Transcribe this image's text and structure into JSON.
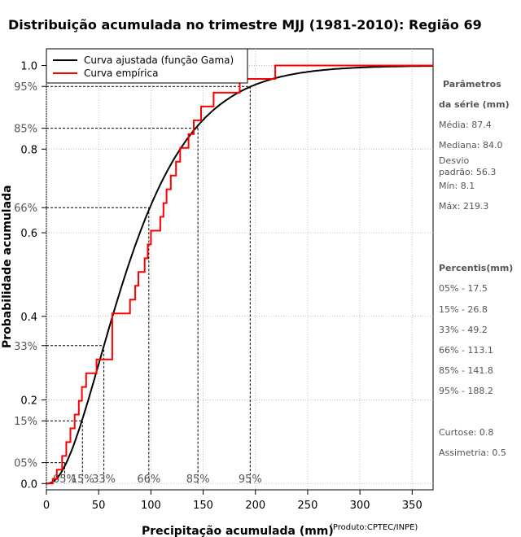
{
  "chart_data": {
    "type": "line",
    "title": "Distribuição acumulada no trimestre MJJ (1981-2010): Região 69",
    "xlabel": "Precipitação acumulada (mm)",
    "ylabel": "Probabilidade acumulada",
    "credit": "(Produto:CPTEC/INPE)",
    "xlim": [
      0,
      370
    ],
    "ylim": [
      -0.015,
      1.04
    ],
    "x_ticks": [
      0,
      50,
      100,
      150,
      200,
      250,
      300,
      350
    ],
    "y_ticks": [
      {
        "value": 0.0,
        "label": "0.0"
      },
      {
        "value": 0.2,
        "label": "0.2"
      },
      {
        "value": 0.4,
        "label": "0.4"
      },
      {
        "value": 0.6,
        "label": "0.6"
      },
      {
        "value": 0.8,
        "label": "0.8"
      },
      {
        "value": 1.0,
        "label": "1.0"
      }
    ],
    "percentile_y_labels": [
      {
        "value": 0.05,
        "label": "05%"
      },
      {
        "value": 0.15,
        "label": "15%"
      },
      {
        "value": 0.33,
        "label": "33%"
      },
      {
        "value": 0.66,
        "label": "66%"
      },
      {
        "value": 0.85,
        "label": "85%"
      },
      {
        "value": 0.95,
        "label": "95%"
      }
    ],
    "percentile_lines": [
      {
        "p": 0.05,
        "x": 17.5,
        "label": "05%"
      },
      {
        "p": 0.15,
        "x": 34.5,
        "label": "15%"
      },
      {
        "p": 0.33,
        "x": 55.0,
        "label": "33%"
      },
      {
        "p": 0.66,
        "x": 98.0,
        "label": "66%"
      },
      {
        "p": 0.85,
        "x": 145.0,
        "label": "85%"
      },
      {
        "p": 0.95,
        "x": 195.0,
        "label": "95%"
      }
    ],
    "gamma_shape": 2.4,
    "gamma_scale": 36.4,
    "series": [
      {
        "name": "Curva ajustada (função Gama)",
        "color": "#000000"
      },
      {
        "name": "Curva empírica",
        "color": "#ff0000",
        "x": [
          0,
          6,
          10,
          15,
          19,
          23,
          27,
          31,
          34,
          38,
          48,
          63,
          72,
          80,
          85,
          88,
          94,
          97,
          100,
          109,
          112,
          115,
          119,
          124,
          128,
          136,
          141,
          145,
          148,
          160,
          185,
          219,
          370
        ],
        "y": [
          0.0,
          0.011,
          0.033,
          0.066,
          0.099,
          0.132,
          0.165,
          0.198,
          0.231,
          0.264,
          0.297,
          0.407,
          0.407,
          0.44,
          0.473,
          0.506,
          0.539,
          0.572,
          0.605,
          0.638,
          0.671,
          0.704,
          0.737,
          0.77,
          0.803,
          0.836,
          0.869,
          0.869,
          0.902,
          0.935,
          0.968,
          1.0,
          1.0
        ]
      }
    ],
    "legend_position": "top-left",
    "grid": true
  },
  "side_panel": {
    "params_title_1": "Parâmetros",
    "params_title_2": "da série (mm)",
    "media": "Média: 87.4",
    "mediana": "Mediana: 84.0",
    "desvio_1": "Desvio",
    "desvio_2": "padrão: 56.3",
    "min": "Mín: 8.1",
    "max": "Máx: 219.3",
    "percentis_title": "Percentis(mm)",
    "p05": "05% - 17.5",
    "p15": "15% - 26.8",
    "p33": "33% - 49.2",
    "p66": "66% - 113.1",
    "p85": "85% - 141.8",
    "p95": "95% - 188.2",
    "curtose": "Curtose: 0.8",
    "assimetria": "Assimetria: 0.5"
  }
}
